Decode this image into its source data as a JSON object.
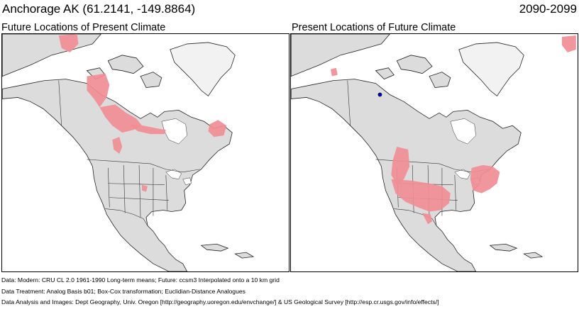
{
  "header": {
    "location": "Anchorage AK  (61.2141, -149.8864)",
    "period": "2090-2099"
  },
  "panels": {
    "left_title": "Future Locations of Present Climate",
    "right_title": "Present Locations of Future Climate"
  },
  "colors": {
    "analog": "#f08d94",
    "land": "#dcdcdc",
    "marker": "#0000cc"
  },
  "footer": {
    "line1": "Data:  Modern: CRU CL 2.0 1961-1990 Long-term means; Future: ccsm3 Interpolated onto a 10 km grid",
    "line2": "Data Treatment:  Analog Basis b01; Box-Cox transformation; Euclidian-Distance Analogues",
    "line3": "Data Analysis and Images:  Dept Geography, Univ. Oregon [http://geography.uoregon.edu/envchange/] & US Geological Survey [http://esp.cr.usgs.gov/info/effects/]"
  }
}
